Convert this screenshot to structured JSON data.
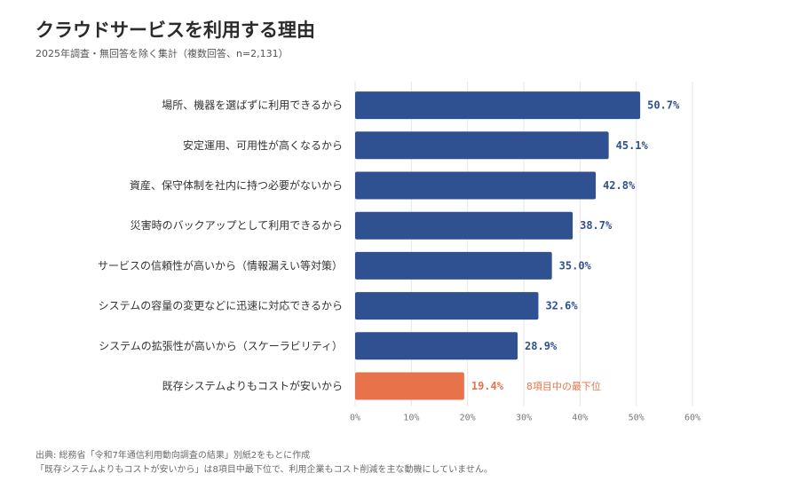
{
  "header": {
    "title": "クラウドサービスを利用する理由",
    "subtitle": "2025年調査・無回答を除く集計（複数回答、n=2,131）"
  },
  "colors": {
    "bar": "#2f5191",
    "highlight": "#e8724a",
    "grid": "#e6e6e6"
  },
  "chart_data": {
    "type": "bar",
    "orientation": "horizontal",
    "categories": [
      "場所、機器を選ばずに利用できるから",
      "安定運用、可用性が高くなるから",
      "資産、保守体制を社内に持つ必要がないから",
      "災害時のバックアップとして利用できるから",
      "サービスの信頼性が高いから（情報漏えい等対策）",
      "システムの容量の変更などに迅速に対応できるから",
      "システムの拡張性が高いから（スケーラビリティ）",
      "既存システムよりもコストが安いから"
    ],
    "values": [
      50.7,
      45.1,
      42.8,
      38.7,
      35.0,
      32.6,
      28.9,
      19.4
    ],
    "value_labels": [
      "50.7%",
      "45.1%",
      "42.8%",
      "38.7%",
      "35.0%",
      "32.6%",
      "28.9%",
      "19.4%"
    ],
    "highlight_index": 7,
    "annotation": "8項目中の最下位",
    "xlim": [
      0,
      60
    ],
    "xticks": [
      0,
      10,
      20,
      30,
      40,
      50,
      60
    ],
    "xtick_labels": [
      "0%",
      "10%",
      "20%",
      "30%",
      "40%",
      "50%",
      "60%"
    ],
    "grid": true
  },
  "footer": {
    "source": "出典: 総務省「令和7年通信利用動向調査の結果」別紙2をもとに作成",
    "note": "「既存システムよりもコストが安いから」は8項目中最下位で、利用企業もコスト削減を主な動機にしていません。"
  }
}
